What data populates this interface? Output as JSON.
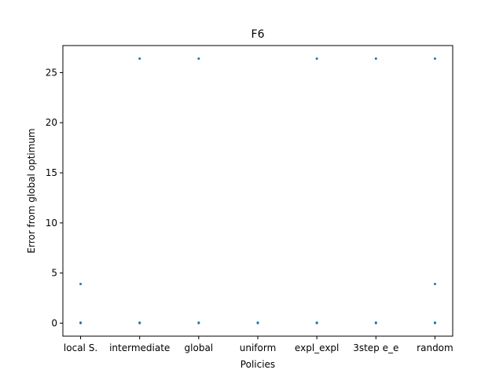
{
  "chart_data": {
    "type": "scatter",
    "title": "F6",
    "xlabel": "Policies",
    "ylabel": "Error from global optimum",
    "categories": [
      "local S.",
      "intermediate",
      "global",
      "uniform",
      "expl_expl",
      "3step e_e",
      "random"
    ],
    "ylim": [
      -1.3,
      27.7
    ],
    "yticks": [
      0,
      5,
      10,
      15,
      20,
      25
    ],
    "grid": false,
    "legend": "none",
    "marker_color": "#1f77b4",
    "points": [
      {
        "category": "local S.",
        "y": 0
      },
      {
        "category": "local S.",
        "y": 0.05
      },
      {
        "category": "local S.",
        "y": 3.9
      },
      {
        "category": "intermediate",
        "y": 0
      },
      {
        "category": "intermediate",
        "y": 0.05
      },
      {
        "category": "intermediate",
        "y": 26.4
      },
      {
        "category": "global",
        "y": 0
      },
      {
        "category": "global",
        "y": 0.05
      },
      {
        "category": "global",
        "y": 26.4
      },
      {
        "category": "uniform",
        "y": 0
      },
      {
        "category": "uniform",
        "y": 0.05
      },
      {
        "category": "expl_expl",
        "y": 0
      },
      {
        "category": "expl_expl",
        "y": 0.05
      },
      {
        "category": "expl_expl",
        "y": 26.4
      },
      {
        "category": "3step e_e",
        "y": 0
      },
      {
        "category": "3step e_e",
        "y": 0.05
      },
      {
        "category": "3step e_e",
        "y": 26.4
      },
      {
        "category": "random",
        "y": 0
      },
      {
        "category": "random",
        "y": 0.05
      },
      {
        "category": "random",
        "y": 3.9
      },
      {
        "category": "random",
        "y": 26.4
      }
    ]
  }
}
